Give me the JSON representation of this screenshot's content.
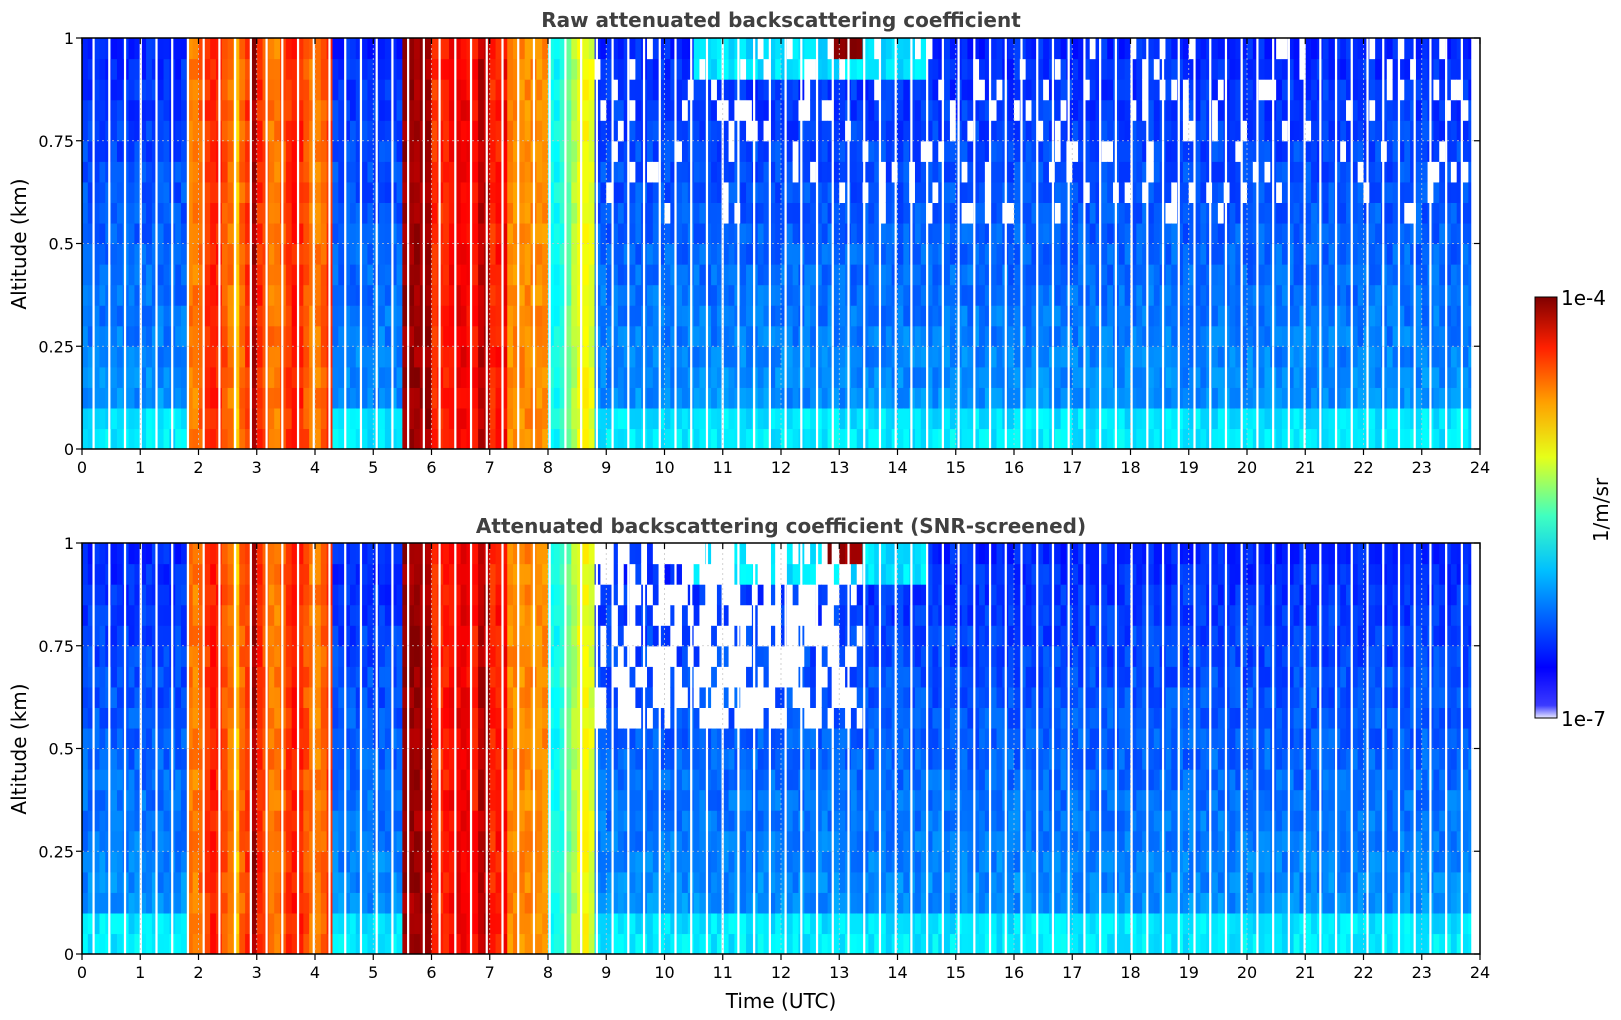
{
  "figure": {
    "colors": {
      "title": "#404040",
      "axis": "#000000",
      "grid": "#c8c8c8",
      "background": "#ffffff"
    }
  },
  "colorbar": {
    "max_label": "1e-4",
    "min_label": "1e-7",
    "unit_label": "1/m/sr",
    "scale": "log",
    "range": [
      1e-07,
      0.0001
    ],
    "colormap": "jet"
  },
  "chart_data": [
    {
      "type": "heatmap",
      "title": "Raw attenuated backscattering coefficient",
      "xlabel": "",
      "ylabel": "Altitude (km)",
      "xlim": [
        0,
        24
      ],
      "ylim": [
        0,
        1
      ],
      "xticks": [
        "0",
        "1",
        "2",
        "3",
        "4",
        "5",
        "6",
        "7",
        "8",
        "9",
        "10",
        "11",
        "12",
        "13",
        "14",
        "15",
        "16",
        "17",
        "18",
        "19",
        "20",
        "21",
        "22",
        "23",
        "24"
      ],
      "yticks": [
        "0",
        "0.25",
        "0.5",
        "0.75",
        "1"
      ],
      "grid": true,
      "description_of_intensity": [
        {
          "time_start": 0.0,
          "time_end": 1.8,
          "level": "low (blue)"
        },
        {
          "time_start": 1.8,
          "time_end": 4.3,
          "level": "high (orange/red)"
        },
        {
          "time_start": 4.3,
          "time_end": 5.5,
          "level": "low (blue)"
        },
        {
          "time_start": 5.5,
          "time_end": 8.0,
          "level": "very high (red/dark red)"
        },
        {
          "time_start": 8.0,
          "time_end": 8.8,
          "level": "medium (yellow/green)"
        },
        {
          "time_start": 8.8,
          "time_end": 24.0,
          "level": "low (blue)"
        }
      ]
    },
    {
      "type": "heatmap",
      "title": "Attenuated backscattering coefficient (SNR-screened)",
      "xlabel": "Time (UTC)",
      "ylabel": "Altitude (km)",
      "xlim": [
        0,
        24
      ],
      "ylim": [
        0,
        1
      ],
      "xticks": [
        "0",
        "1",
        "2",
        "3",
        "4",
        "5",
        "6",
        "7",
        "8",
        "9",
        "10",
        "11",
        "12",
        "13",
        "14",
        "15",
        "16",
        "17",
        "18",
        "19",
        "20",
        "21",
        "22",
        "23",
        "24"
      ],
      "yticks": [
        "0",
        "0.25",
        "0.5",
        "0.75",
        "1"
      ],
      "grid": true,
      "description_of_intensity": [
        {
          "time_start": 0.0,
          "time_end": 1.8,
          "level": "low (blue)"
        },
        {
          "time_start": 1.8,
          "time_end": 4.3,
          "level": "high (orange/red)"
        },
        {
          "time_start": 4.3,
          "time_end": 5.5,
          "level": "low (blue)"
        },
        {
          "time_start": 5.5,
          "time_end": 8.0,
          "level": "very high (red/dark red)"
        },
        {
          "time_start": 8.0,
          "time_end": 8.8,
          "level": "medium (yellow/green)"
        },
        {
          "time_start": 8.8,
          "time_end": 24.0,
          "level": "low (blue), screened out above ~0.5 km between 8.8 and 13.4"
        }
      ]
    }
  ]
}
